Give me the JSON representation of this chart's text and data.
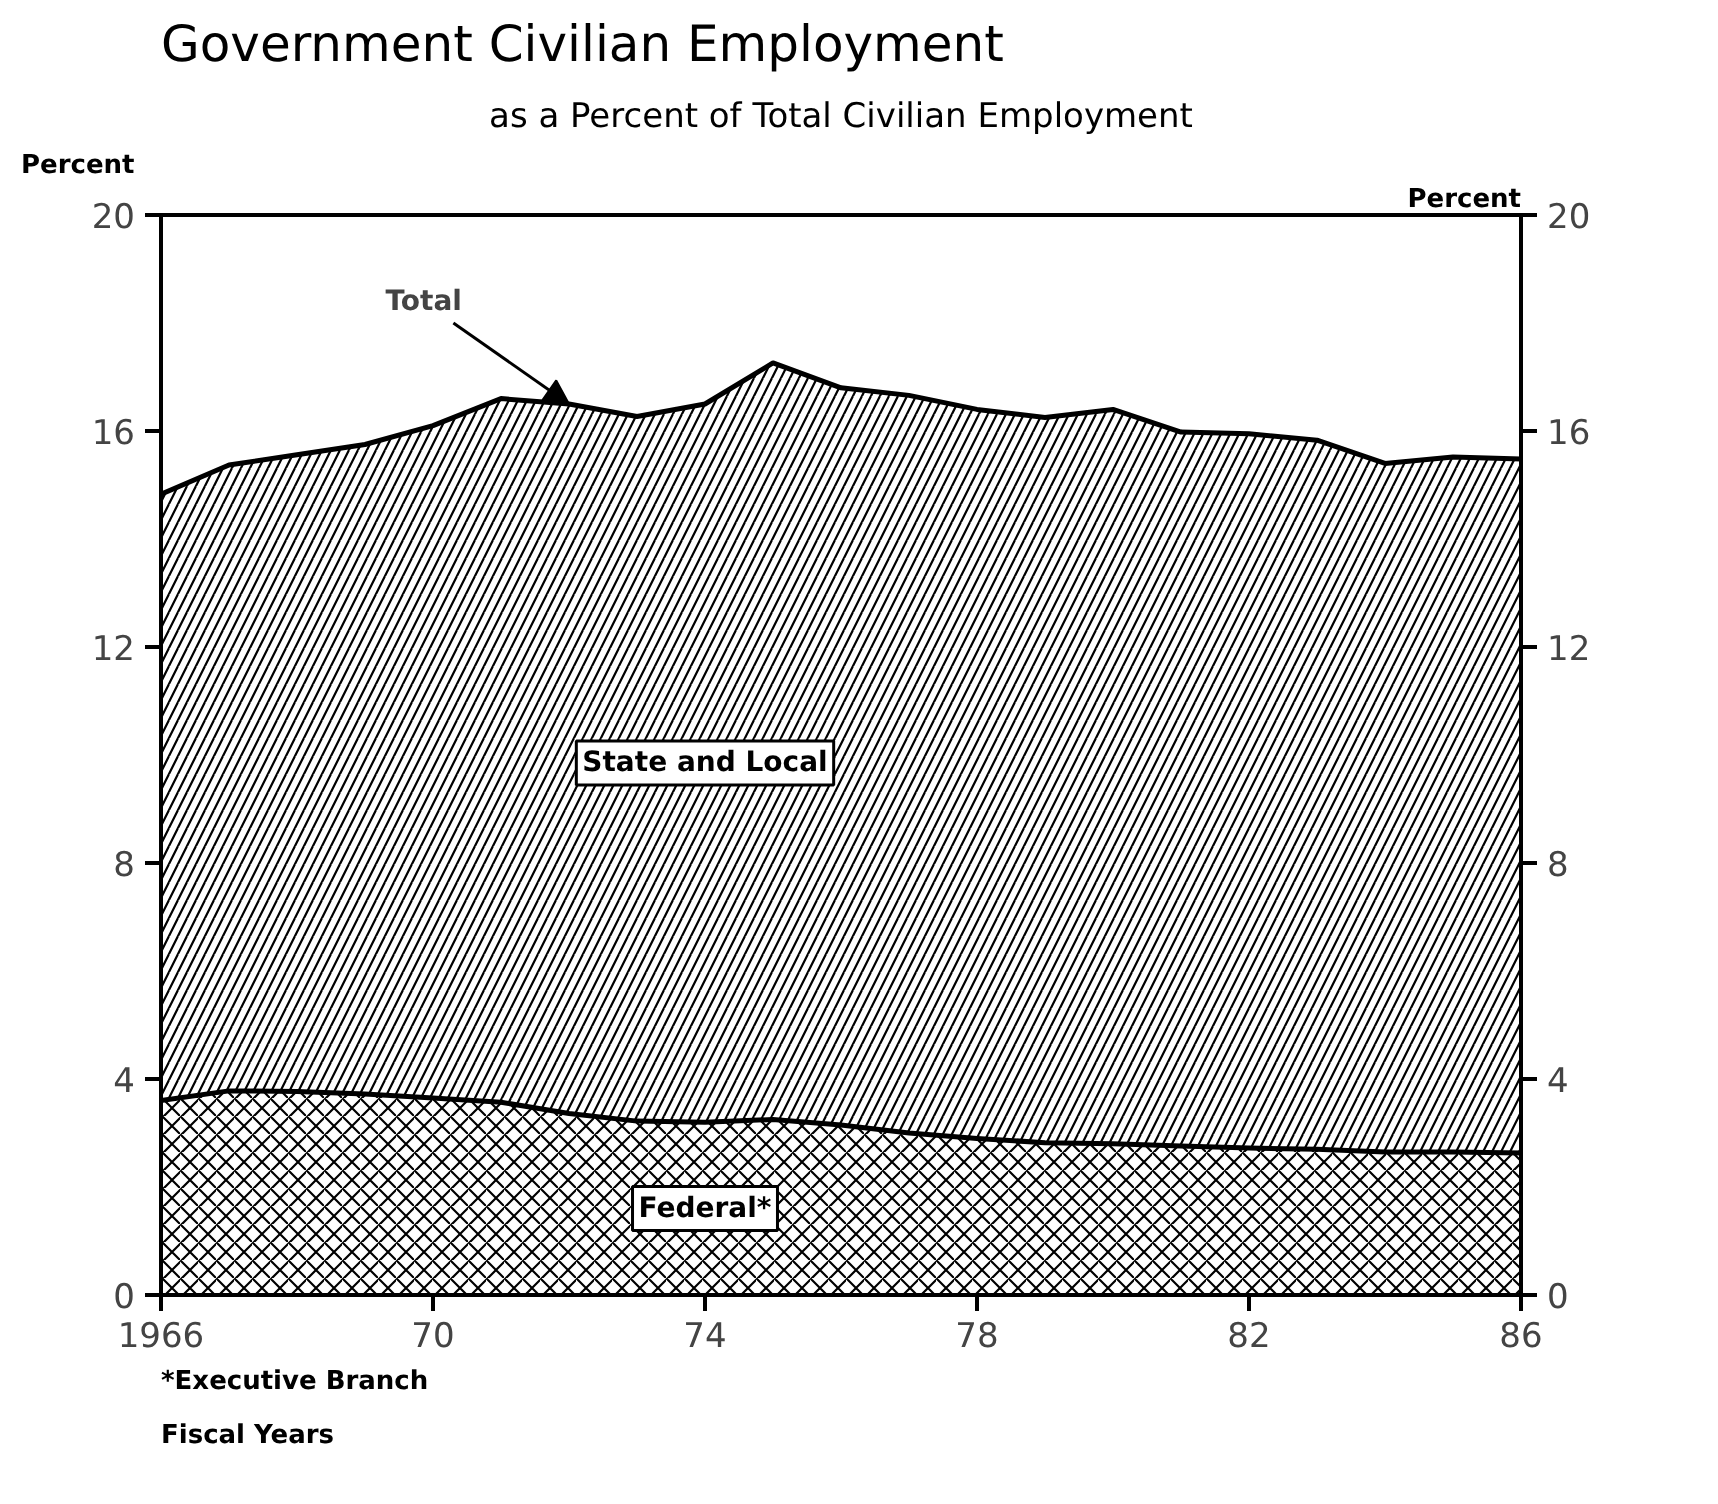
{
  "chart_data": {
    "type": "area",
    "stacked": true,
    "title": "Government Civilian Employment",
    "subtitle": "as a Percent of Total Civilian Employment",
    "xlabel": "Fiscal Years",
    "ylabel": "Percent",
    "y2label": "Percent",
    "x": [
      1966,
      1967,
      1968,
      1969,
      1970,
      1971,
      1972,
      1973,
      1974,
      1975,
      1976,
      1977,
      1978,
      1979,
      1980,
      1981,
      1982,
      1983,
      1984,
      1985,
      1986
    ],
    "series": [
      {
        "name": "Federal*",
        "color": "#000000",
        "values": [
          3.6,
          3.78,
          3.77,
          3.72,
          3.65,
          3.57,
          3.36,
          3.22,
          3.2,
          3.25,
          3.15,
          3.0,
          2.9,
          2.82,
          2.8,
          2.76,
          2.72,
          2.7,
          2.65,
          2.65,
          2.63
        ]
      },
      {
        "name": "State and Local",
        "color": "#000000",
        "values": [
          11.23,
          11.59,
          11.79,
          12.03,
          12.45,
          13.03,
          13.14,
          13.05,
          13.3,
          14.01,
          13.65,
          13.66,
          13.5,
          13.43,
          13.6,
          13.22,
          13.23,
          13.13,
          12.75,
          12.87,
          12.85
        ]
      }
    ],
    "xlim": [
      1966,
      1986
    ],
    "xticks": [
      1966,
      {
        "value": 1970,
        "label": "70"
      },
      {
        "value": 1974,
        "label": "74"
      },
      {
        "value": 1978,
        "label": "78"
      },
      {
        "value": 1982,
        "label": "82"
      },
      {
        "value": 1986,
        "label": "86"
      }
    ],
    "ylim": [
      0,
      20
    ],
    "yticks": [
      0,
      4,
      8,
      12,
      16,
      20
    ],
    "y2lim": [
      0,
      20
    ],
    "y2ticks": [
      0,
      4,
      8,
      12,
      16,
      20
    ],
    "grid": false,
    "legend": false,
    "annotations": [
      {
        "text": "Total",
        "x": 1972,
        "y": 16.5
      },
      "*Executive Branch"
    ]
  }
}
